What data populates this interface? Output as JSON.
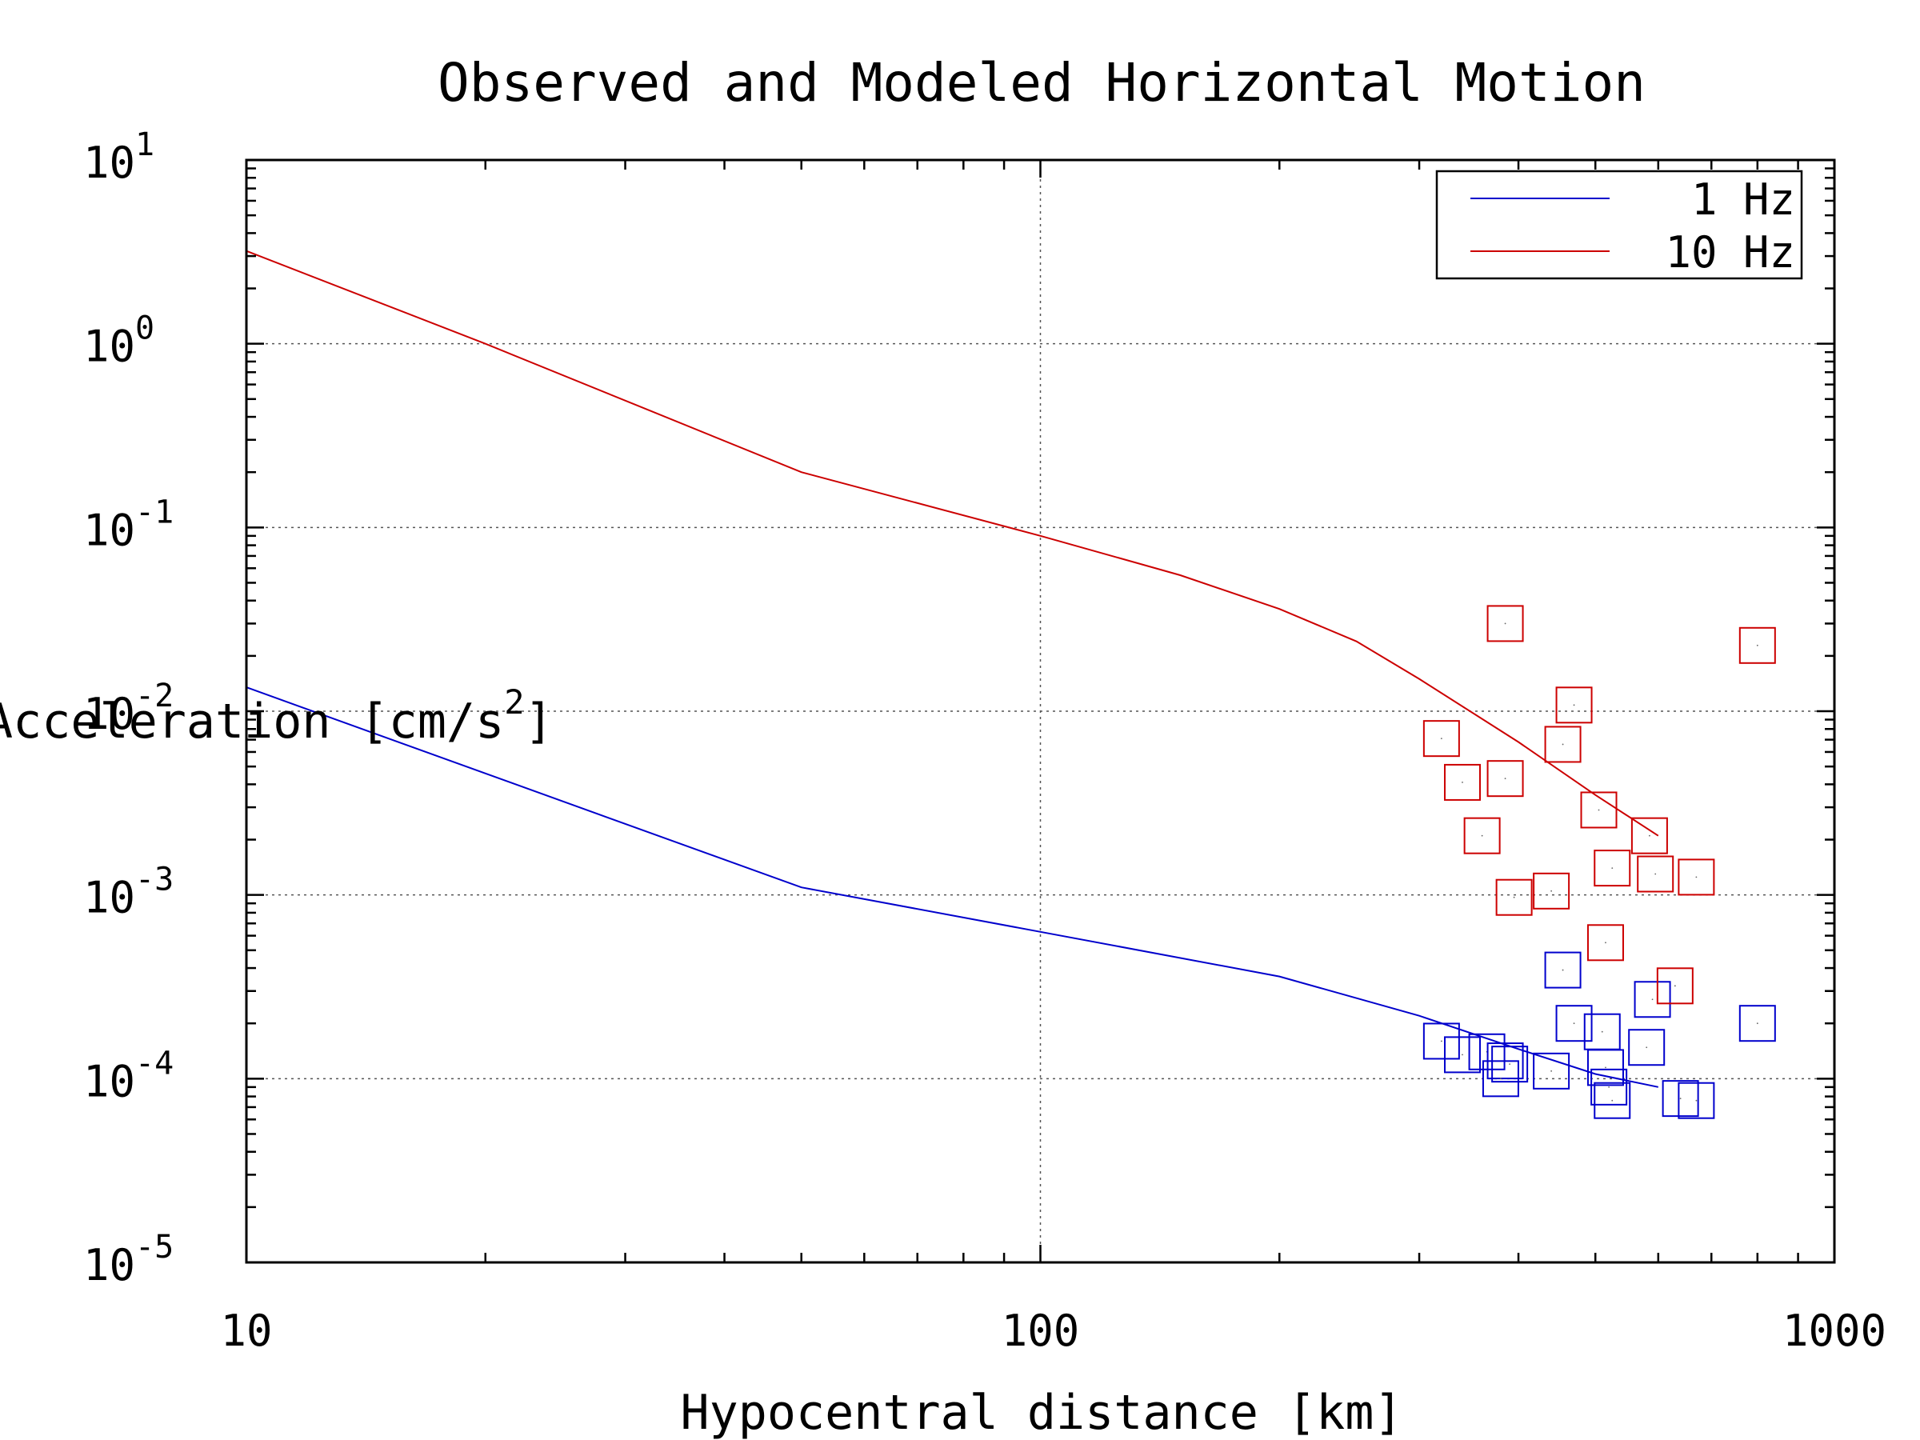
{
  "chart_data": {
    "type": "scatter",
    "title": "Observed and Modeled Horizontal Motion",
    "xlabel": "Hypocentral distance [km]",
    "ylabel": "Acceleration [cm/s²]",
    "ylabel_main": "Acceleration [cm/s",
    "ylabel_sup": "2",
    "ylabel_close": "]",
    "x_scale": "log",
    "y_scale": "log",
    "xlim": [
      10,
      1000
    ],
    "ylim": [
      1e-05,
      10
    ],
    "grid": true,
    "legend_position": "top-right",
    "x_ticks": [
      {
        "value": 10,
        "label": "10"
      },
      {
        "value": 100,
        "label": "100"
      },
      {
        "value": 1000,
        "label": "1000"
      }
    ],
    "y_ticks": [
      {
        "value": 10,
        "base": "10",
        "exp": "1"
      },
      {
        "value": 1,
        "base": "10",
        "exp": "0"
      },
      {
        "value": 0.1,
        "base": "10",
        "exp": "-1"
      },
      {
        "value": 0.01,
        "base": "10",
        "exp": "-2"
      },
      {
        "value": 0.001,
        "base": "10",
        "exp": "-3"
      },
      {
        "value": 0.0001,
        "base": "10",
        "exp": "-4"
      },
      {
        "value": 1e-05,
        "base": "10",
        "exp": "-5"
      }
    ],
    "series": [
      {
        "name": "1 Hz",
        "color": "#0000cc",
        "model_x": [
          10,
          50,
          100,
          200,
          300,
          400,
          500,
          600
        ],
        "model_y": [
          0.0135,
          0.0011,
          0.00063,
          0.00036,
          0.00022,
          0.000145,
          0.000106,
          9e-05
        ],
        "observed_x": [
          320,
          340,
          365,
          385,
          380,
          390,
          440,
          455,
          470,
          510,
          515,
          520,
          525,
          580,
          590,
          640,
          670,
          800
        ],
        "observed_y": [
          0.00016,
          0.000135,
          0.00014,
          0.000125,
          0.0001,
          0.00012,
          0.00011,
          0.00039,
          0.0002,
          0.00018,
          0.000115,
          9e-05,
          7.6e-05,
          0.000148,
          0.00027,
          7.8e-05,
          7.6e-05,
          0.0002
        ]
      },
      {
        "name": "10 Hz",
        "color": "#cc0000",
        "model_x": [
          10,
          20,
          50,
          100,
          150,
          200,
          250,
          300,
          400,
          500,
          600
        ],
        "model_y": [
          3.2,
          1.0,
          0.2,
          0.09,
          0.055,
          0.036,
          0.024,
          0.015,
          0.0068,
          0.0035,
          0.0021
        ],
        "observed_x": [
          320,
          340,
          360,
          385,
          385,
          395,
          440,
          455,
          470,
          505,
          515,
          525,
          585,
          595,
          630,
          670,
          800
        ],
        "observed_y": [
          0.0071,
          0.0041,
          0.0021,
          0.03,
          0.0043,
          0.00097,
          0.00105,
          0.0066,
          0.0108,
          0.0029,
          0.00055,
          0.0014,
          0.0021,
          0.0013,
          0.00032,
          0.00125,
          0.0228
        ]
      }
    ]
  }
}
